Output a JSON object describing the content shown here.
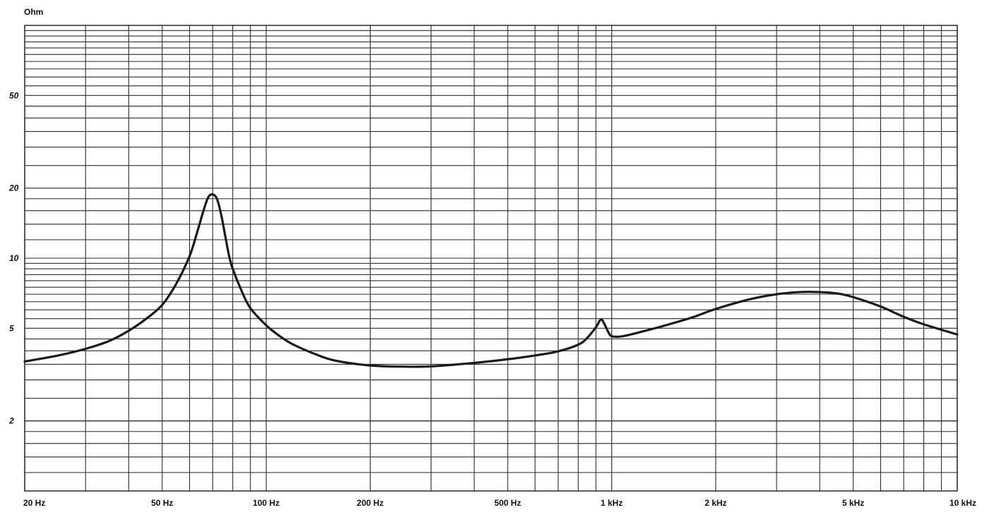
{
  "chart_data": {
    "type": "line",
    "title": "",
    "xlabel": "",
    "ylabel": "Ohm",
    "x_scale": "log",
    "y_scale": "log",
    "xlim": [
      20,
      10000
    ],
    "ylim": [
      1,
      100
    ],
    "grid": true,
    "x_tick_labels": [
      {
        "value": 20,
        "label": "20 Hz"
      },
      {
        "value": 50,
        "label": "50 Hz"
      },
      {
        "value": 100,
        "label": "100 Hz"
      },
      {
        "value": 200,
        "label": "200 Hz"
      },
      {
        "value": 500,
        "label": "500 Hz"
      },
      {
        "value": 1000,
        "label": "1 kHz"
      },
      {
        "value": 2000,
        "label": "2 kHz"
      },
      {
        "value": 5000,
        "label": "5 kHz"
      },
      {
        "value": 10000,
        "label": "10 kHz"
      }
    ],
    "y_tick_labels": [
      {
        "value": 2,
        "label": "2"
      },
      {
        "value": 5,
        "label": "5"
      },
      {
        "value": 10,
        "label": "10"
      },
      {
        "value": 20,
        "label": "20"
      },
      {
        "value": 50,
        "label": "50"
      }
    ],
    "series": [
      {
        "color": "#1a1a1a",
        "x": [
          20,
          25,
          30,
          35,
          40,
          45,
          50,
          55,
          60,
          63,
          66,
          68,
          70,
          72,
          74,
          76,
          78,
          80,
          85,
          90,
          100,
          110,
          120,
          140,
          160,
          200,
          250,
          300,
          400,
          500,
          600,
          700,
          800,
          850,
          900,
          930,
          950,
          980,
          1000,
          1050,
          1100,
          1200,
          1400,
          1700,
          2000,
          2500,
          3000,
          3500,
          4000,
          4500,
          5000,
          6000,
          7000,
          8000,
          10000
        ],
        "y": [
          3.6,
          3.82,
          4.08,
          4.4,
          4.88,
          5.5,
          6.3,
          7.8,
          10.2,
          12.8,
          16.2,
          18.3,
          18.8,
          18.0,
          15.5,
          12.6,
          10.3,
          9.0,
          7.2,
          6.1,
          5.15,
          4.6,
          4.25,
          3.85,
          3.62,
          3.46,
          3.42,
          3.43,
          3.55,
          3.68,
          3.82,
          3.98,
          4.25,
          4.55,
          5.05,
          5.45,
          5.25,
          4.78,
          4.62,
          4.6,
          4.65,
          4.8,
          5.1,
          5.55,
          6.05,
          6.65,
          7.0,
          7.15,
          7.15,
          7.05,
          6.8,
          6.2,
          5.6,
          5.2,
          4.7
        ]
      }
    ]
  }
}
